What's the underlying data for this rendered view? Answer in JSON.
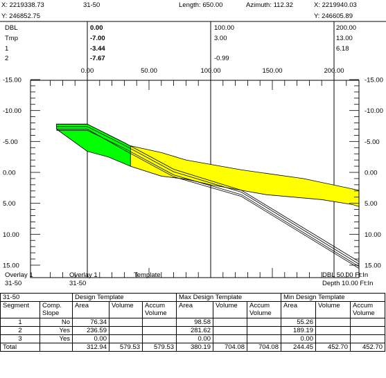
{
  "header": {
    "x_left": "X: 2219338.73",
    "y_left": "Y: 246852.75",
    "section": "31-50",
    "length": "Length: 650.00",
    "azimuth": "Azimuth: 112.32",
    "x_right": "X: 2219940.03",
    "y_right": "Y: 246605.89"
  },
  "legend_rows": [
    {
      "name": "DBL",
      "v1": "0.00",
      "v2": "100.00",
      "v3": "200.00"
    },
    {
      "name": "Tmp",
      "v1": "-7.00",
      "v2": "3.00",
      "v3": "13.00"
    },
    {
      "name": "1",
      "v1": "-3.44",
      "v2": "",
      "v3": "6.18"
    },
    {
      "name": "2",
      "v1": "-7.67",
      "v2": "-0.99",
      "v3": ""
    }
  ],
  "chart_data": {
    "type": "area",
    "x_ticks": [
      "0.00",
      "50.00",
      "100.00",
      "150.00",
      "200.00"
    ],
    "x_range": [
      0,
      200
    ],
    "y_range": [
      -15,
      15
    ],
    "y_ticks": [
      "-15.00",
      "-10.00",
      "-5.00",
      "0.00",
      "5.00",
      "10.00",
      "15.00"
    ],
    "fill_colors": {
      "cut": "#00ff00",
      "fill": "#ffff00"
    },
    "series": [
      {
        "name": "",
        "color": "#00ff00",
        "polygon": [
          [
            -25,
            -7.8
          ],
          [
            0,
            -7.8
          ],
          [
            30,
            -4.8
          ],
          [
            70,
            -0.5
          ],
          [
            125,
            2.9
          ],
          [
            125,
            2.0
          ],
          [
            100,
            2.0
          ],
          [
            80,
            1.1
          ],
          [
            60,
            0.6
          ],
          [
            35,
            -1.0
          ],
          [
            17,
            -2.5
          ],
          [
            0,
            -3.4
          ],
          [
            -25,
            -7.0
          ]
        ]
      },
      {
        "name": "",
        "color": "#ffff00",
        "polygon": [
          [
            35,
            -4.3
          ],
          [
            60,
            -3.2
          ],
          [
            80,
            -2.0
          ],
          [
            125,
            -0.4
          ],
          [
            175,
            1.0
          ],
          [
            225,
            3.1
          ],
          [
            225,
            5.8
          ],
          [
            215,
            5.2
          ],
          [
            190,
            4.4
          ],
          [
            145,
            3.6
          ],
          [
            125,
            2.9
          ],
          [
            100,
            2.0
          ],
          [
            80,
            1.1
          ],
          [
            60,
            0.6
          ],
          [
            35,
            -1.0
          ]
        ]
      }
    ],
    "lines": [
      {
        "name": "",
        "points": [
          [
            -25,
            -7.8
          ],
          [
            0,
            -7.8
          ],
          [
            30,
            -4.8
          ],
          [
            70,
            -0.5
          ],
          [
            125,
            2.9
          ],
          [
            225,
            15.0
          ]
        ]
      },
      {
        "name": "",
        "points": [
          [
            -25,
            -7.4
          ],
          [
            0,
            -7.4
          ],
          [
            30,
            -4.4
          ],
          [
            70,
            -0.1
          ],
          [
            125,
            3.2
          ],
          [
            225,
            15.4
          ]
        ]
      },
      {
        "name": "",
        "points": [
          [
            -25,
            -6.8
          ],
          [
            0,
            -6.8
          ],
          [
            30,
            -3.9
          ],
          [
            70,
            0.4
          ],
          [
            125,
            3.6
          ],
          [
            225,
            15.8
          ]
        ]
      },
      {
        "name": "",
        "points": [
          [
            -25,
            -7.0
          ],
          [
            0,
            -7.0
          ],
          [
            30,
            -3.6
          ],
          [
            70,
            0.7
          ],
          [
            125,
            3.9
          ],
          [
            225,
            16.1
          ]
        ]
      }
    ]
  },
  "footer": {
    "overlay_a": "Overlay 1",
    "section_a": "31-50",
    "overlay_b": "Overlay 1",
    "section_b": "31-50",
    "template": "Template",
    "dbl": "DBL 50.00 Ft:In",
    "depth": "Depth 10.00 Ft:In"
  },
  "table": {
    "section": "31-50",
    "group_design": "Design Template",
    "group_max": "Max Design Template",
    "group_min": "Min Design Template",
    "h_segment": "Segment",
    "h_comp": "Comp.",
    "h_slope": "Slope",
    "h_area": "Area",
    "h_volume": "Volume",
    "h_accum": "Accum",
    "h_accum2": "Volume",
    "rows": [
      {
        "seg": "1",
        "comp": "No",
        "d_area": "76.34",
        "d_vol": "",
        "d_acc": "",
        "x_area": "98.58",
        "x_vol": "",
        "x_acc": "",
        "n_area": "55.26",
        "n_vol": "",
        "n_acc": ""
      },
      {
        "seg": "2",
        "comp": "Yes",
        "d_area": "236.59",
        "d_vol": "",
        "d_acc": "",
        "x_area": "281.62",
        "x_vol": "",
        "x_acc": "",
        "n_area": "189.19",
        "n_vol": "",
        "n_acc": ""
      },
      {
        "seg": "3",
        "comp": "Yes",
        "d_area": "0.00",
        "d_vol": "",
        "d_acc": "",
        "x_area": "0.00",
        "x_vol": "",
        "x_acc": "",
        "n_area": "0.00",
        "n_vol": "",
        "n_acc": ""
      }
    ],
    "total": {
      "seg": "Total",
      "comp": "",
      "d_area": "312.94",
      "d_vol": "579.53",
      "d_acc": "579.53",
      "x_area": "380.19",
      "x_vol": "704.08",
      "x_acc": "704.08",
      "n_area": "244.45",
      "n_vol": "452.70",
      "n_acc": "452.70"
    }
  }
}
